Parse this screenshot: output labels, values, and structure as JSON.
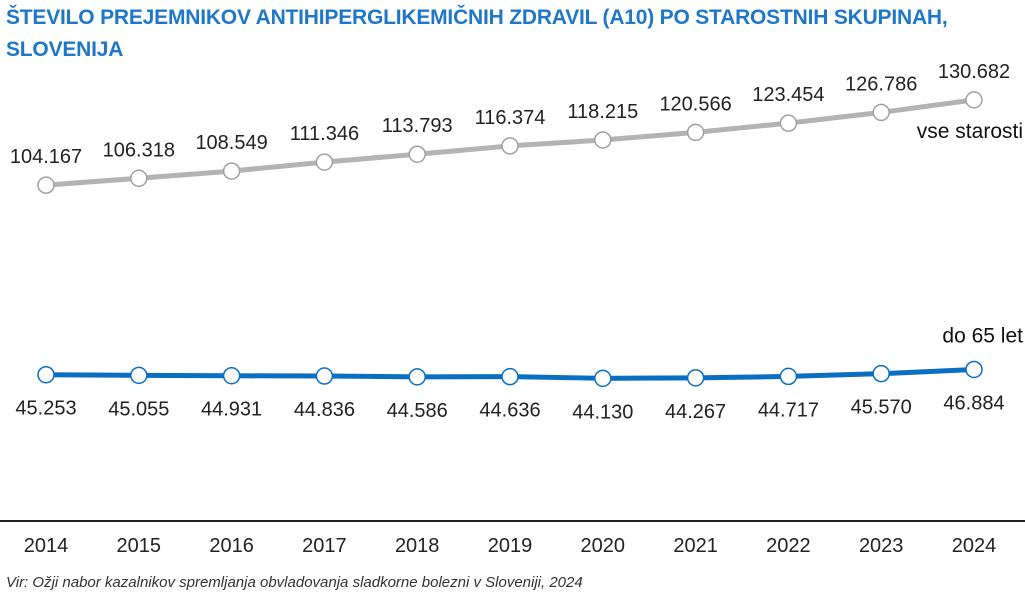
{
  "title": "ŠTEVILO PREJEMNIKOV ANTIHIPERGLIKEMIČNIH ZDRAVIL (A10) PO STAROSTNIH SKUPINAH, SLOVENIJA",
  "source": "Vir: Ožji nabor kazalnikov spremljanja obvladovanja sladkorne bolezni v Sloveniji, 2024",
  "colors": {
    "title": "#1f77c8",
    "series_all": "#b3b3b3",
    "series_under65": "#0a6fc2",
    "axis": "#222222"
  },
  "chart_data": {
    "type": "line",
    "title": "ŠTEVILO PREJEMNIKOV ANTIHIPERGLIKEMIČNIH ZDRAVIL (A10) PO STAROSTNIH SKUPINAH, SLOVENIJA",
    "categories": [
      "2014",
      "2015",
      "2016",
      "2017",
      "2018",
      "2019",
      "2020",
      "2021",
      "2022",
      "2023",
      "2024"
    ],
    "series": [
      {
        "name": "vse starosti",
        "values": [
          104167,
          106318,
          108549,
          111346,
          113793,
          116374,
          118215,
          120566,
          123454,
          126786,
          130682
        ],
        "labels": [
          "104.167",
          "106.318",
          "108.549",
          "111.346",
          "113.793",
          "116.374",
          "118.215",
          "120.566",
          "123.454",
          "126.786",
          "130.682"
        ]
      },
      {
        "name": "do 65 let",
        "values": [
          45253,
          45055,
          44931,
          44836,
          44586,
          44636,
          44130,
          44267,
          44717,
          45570,
          46884
        ],
        "labels": [
          "45.253",
          "45.055",
          "44.931",
          "44.836",
          "44.586",
          "44.636",
          "44.130",
          "44.267",
          "44.717",
          "45.570",
          "46.884"
        ]
      }
    ],
    "xlabel": "",
    "ylabel": "",
    "grid": false
  }
}
